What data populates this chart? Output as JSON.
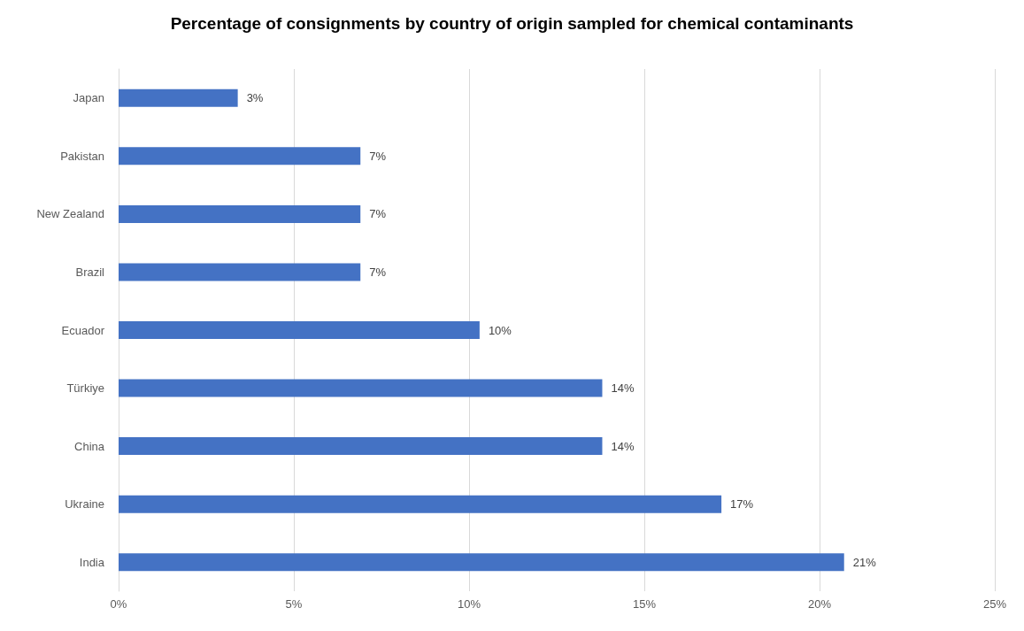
{
  "chart_data": {
    "type": "bar",
    "orientation": "horizontal",
    "title": "Percentage of consignments by country of origin sampled for chemical contaminants",
    "categories": [
      "Japan",
      "Pakistan",
      "New Zealand",
      "Brazil",
      "Ecuador",
      "Türkiye",
      "China",
      "Ukraine",
      "India"
    ],
    "values": [
      3.4,
      6.9,
      6.9,
      6.9,
      10.3,
      13.8,
      13.8,
      17.2,
      20.7
    ],
    "value_labels": [
      "3%",
      "7%",
      "7%",
      "7%",
      "10%",
      "14%",
      "14%",
      "17%",
      "21%"
    ],
    "color": "#4472c4",
    "xlim": [
      0,
      25
    ],
    "xticks": [
      {
        "value": 0,
        "label": "0%"
      },
      {
        "value": 5,
        "label": "5%"
      },
      {
        "value": 10,
        "label": "10%"
      },
      {
        "value": 15,
        "label": "15%"
      },
      {
        "value": 20,
        "label": "20%"
      },
      {
        "value": 25,
        "label": "25%"
      }
    ],
    "grid": "x"
  }
}
